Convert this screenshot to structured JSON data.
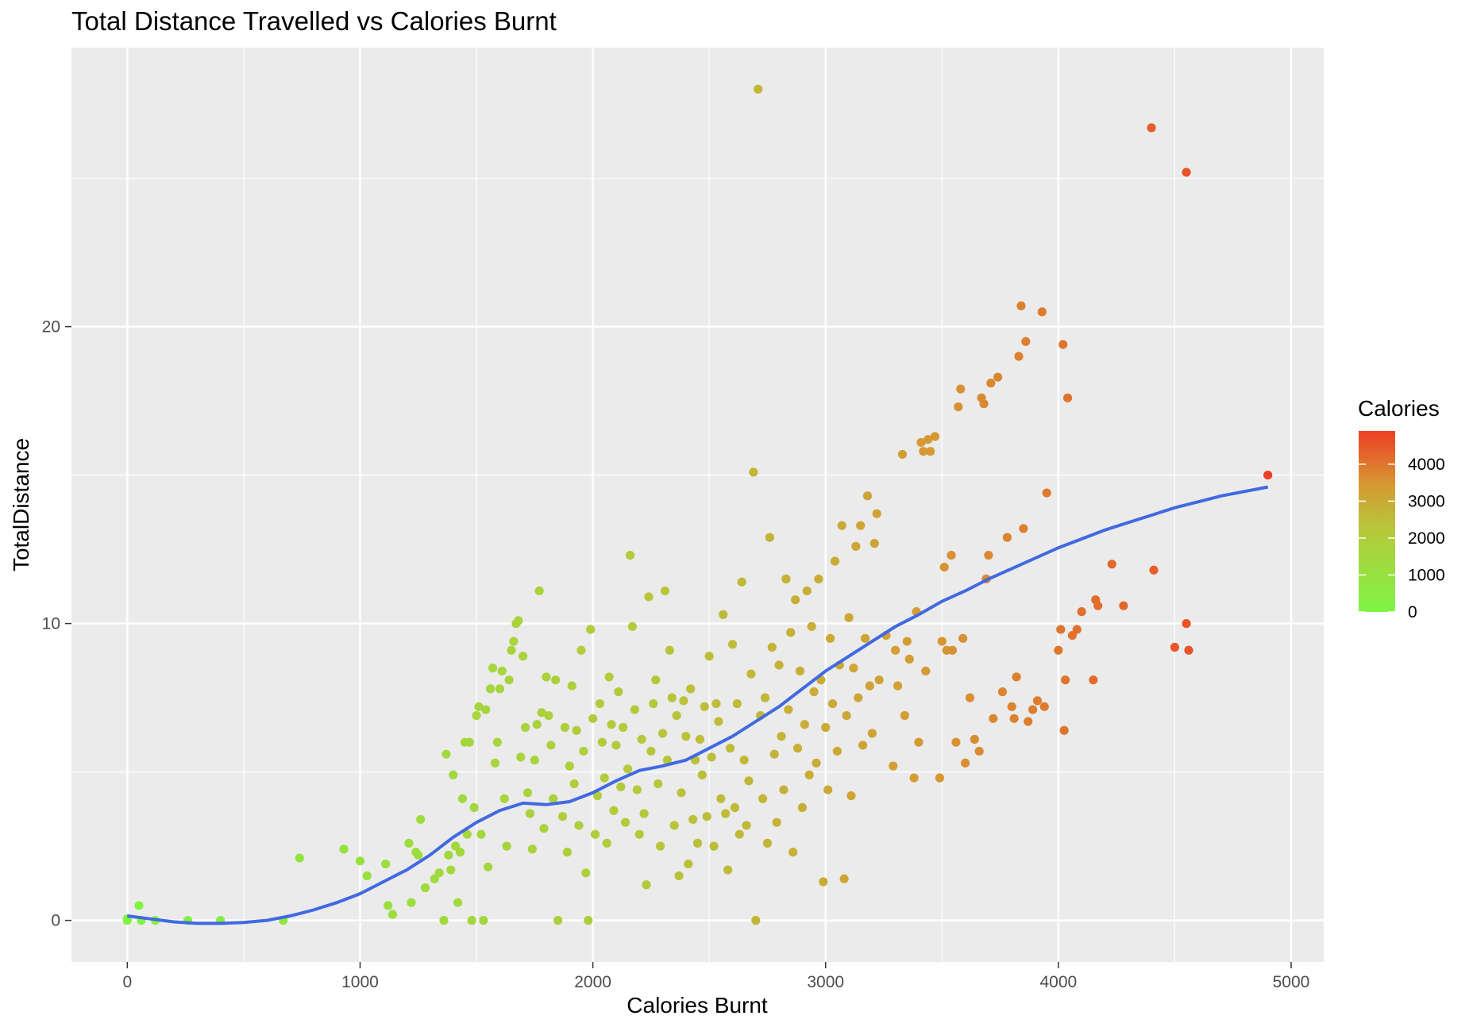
{
  "chart_data": {
    "type": "scatter",
    "title": "Total Distance Travelled vs Calories Burnt",
    "xlabel": "Calories Burnt",
    "ylabel": "TotalDistance",
    "xlim": [
      -240,
      5140
    ],
    "ylim": [
      -1.4,
      29.4
    ],
    "x_ticks": [
      0,
      1000,
      2000,
      3000,
      4000,
      5000
    ],
    "x_tick_labels": [
      "0",
      "1000",
      "2000",
      "3000",
      "4000",
      "5000"
    ],
    "y_ticks": [
      0,
      10,
      20
    ],
    "y_tick_labels": [
      "0",
      "10",
      "20"
    ],
    "grid": true,
    "legend": {
      "title": "Calories",
      "position": "right",
      "ticks": [
        0,
        1000,
        2000,
        3000,
        4000
      ],
      "tick_labels": [
        "0",
        "1000",
        "2000",
        "3000",
        "4000"
      ],
      "range": [
        0,
        4900
      ],
      "color_low": "#7FF543",
      "color_high": "#EE3E25"
    },
    "colors": {
      "panel_background": "#EBEBEB",
      "grid": "#FFFFFF",
      "smooth_line": "#4169E1"
    },
    "points": [
      [
        0,
        0
      ],
      [
        0,
        0.05
      ],
      [
        50,
        0.5
      ],
      [
        60,
        0
      ],
      [
        120,
        0
      ],
      [
        260,
        0
      ],
      [
        400,
        0
      ],
      [
        670,
        0
      ],
      [
        740,
        2.1
      ],
      [
        930,
        2.4
      ],
      [
        1000,
        2
      ],
      [
        1030,
        1.5
      ],
      [
        1110,
        1.9
      ],
      [
        1120,
        0.5
      ],
      [
        1140,
        0.2
      ],
      [
        1210,
        2.6
      ],
      [
        1220,
        0.6
      ],
      [
        1240,
        2.3
      ],
      [
        1250,
        2.2
      ],
      [
        1260,
        3.4
      ],
      [
        1280,
        1.1
      ],
      [
        1320,
        1.4
      ],
      [
        1340,
        1.6
      ],
      [
        1360,
        0
      ],
      [
        1370,
        5.6
      ],
      [
        1380,
        2.2
      ],
      [
        1390,
        1.7
      ],
      [
        1400,
        4.9
      ],
      [
        1410,
        2.5
      ],
      [
        1420,
        0.6
      ],
      [
        1430,
        2.3
      ],
      [
        1440,
        4.1
      ],
      [
        1450,
        6
      ],
      [
        1460,
        2.9
      ],
      [
        1470,
        6
      ],
      [
        1480,
        0
      ],
      [
        1490,
        3.8
      ],
      [
        1500,
        6.9
      ],
      [
        1510,
        7.2
      ],
      [
        1520,
        2.9
      ],
      [
        1530,
        0
      ],
      [
        1540,
        7.1
      ],
      [
        1550,
        1.8
      ],
      [
        1560,
        7.8
      ],
      [
        1570,
        8.5
      ],
      [
        1580,
        5.3
      ],
      [
        1590,
        6
      ],
      [
        1600,
        7.8
      ],
      [
        1610,
        8.4
      ],
      [
        1620,
        4.1
      ],
      [
        1630,
        2.5
      ],
      [
        1640,
        8.1
      ],
      [
        1650,
        9.1
      ],
      [
        1660,
        9.4
      ],
      [
        1670,
        10
      ],
      [
        1680,
        10.1
      ],
      [
        1690,
        5.5
      ],
      [
        1700,
        8.9
      ],
      [
        1710,
        6.5
      ],
      [
        1720,
        4.3
      ],
      [
        1730,
        3.6
      ],
      [
        1740,
        2.4
      ],
      [
        1750,
        5.4
      ],
      [
        1760,
        6.6
      ],
      [
        1770,
        11.1
      ],
      [
        1780,
        7
      ],
      [
        1790,
        3.1
      ],
      [
        1800,
        8.2
      ],
      [
        1810,
        6.9
      ],
      [
        1820,
        5.9
      ],
      [
        1830,
        4.1
      ],
      [
        1840,
        8.1
      ],
      [
        1850,
        0
      ],
      [
        1870,
        3.5
      ],
      [
        1880,
        6.5
      ],
      [
        1890,
        2.3
      ],
      [
        1900,
        5.2
      ],
      [
        1910,
        7.9
      ],
      [
        1920,
        4.6
      ],
      [
        1930,
        6.4
      ],
      [
        1940,
        3.2
      ],
      [
        1950,
        9.1
      ],
      [
        1960,
        5.7
      ],
      [
        1970,
        1.6
      ],
      [
        1980,
        0
      ],
      [
        1990,
        9.8
      ],
      [
        2000,
        6.8
      ],
      [
        2010,
        2.9
      ],
      [
        2020,
        4.2
      ],
      [
        2030,
        7.3
      ],
      [
        2040,
        6
      ],
      [
        2050,
        4.8
      ],
      [
        2060,
        2.6
      ],
      [
        2070,
        8.2
      ],
      [
        2080,
        6.6
      ],
      [
        2090,
        3.7
      ],
      [
        2100,
        5.9
      ],
      [
        2110,
        7.7
      ],
      [
        2120,
        4.5
      ],
      [
        2130,
        6.5
      ],
      [
        2140,
        3.3
      ],
      [
        2150,
        5.1
      ],
      [
        2160,
        12.3
      ],
      [
        2170,
        9.9
      ],
      [
        2180,
        7.1
      ],
      [
        2190,
        4.4
      ],
      [
        2200,
        2.9
      ],
      [
        2210,
        6.1
      ],
      [
        2220,
        3.6
      ],
      [
        2230,
        1.2
      ],
      [
        2240,
        10.9
      ],
      [
        2250,
        5.7
      ],
      [
        2260,
        7.3
      ],
      [
        2270,
        8.1
      ],
      [
        2280,
        4.6
      ],
      [
        2290,
        2.5
      ],
      [
        2300,
        6.3
      ],
      [
        2310,
        11.1
      ],
      [
        2320,
        5.4
      ],
      [
        2330,
        9.1
      ],
      [
        2340,
        7.5
      ],
      [
        2350,
        3.2
      ],
      [
        2360,
        6.9
      ],
      [
        2370,
        1.5
      ],
      [
        2380,
        4.3
      ],
      [
        2390,
        7.4
      ],
      [
        2400,
        6.2
      ],
      [
        2410,
        1.9
      ],
      [
        2420,
        7.8
      ],
      [
        2430,
        3.4
      ],
      [
        2440,
        5.4
      ],
      [
        2450,
        2.6
      ],
      [
        2460,
        6.1
      ],
      [
        2470,
        4.9
      ],
      [
        2480,
        7.2
      ],
      [
        2490,
        3.5
      ],
      [
        2500,
        8.9
      ],
      [
        2510,
        5.5
      ],
      [
        2520,
        2.5
      ],
      [
        2530,
        7.3
      ],
      [
        2540,
        6.7
      ],
      [
        2550,
        4.1
      ],
      [
        2560,
        10.3
      ],
      [
        2570,
        3.6
      ],
      [
        2580,
        1.7
      ],
      [
        2590,
        5.8
      ],
      [
        2600,
        9.3
      ],
      [
        2610,
        3.8
      ],
      [
        2620,
        7.3
      ],
      [
        2630,
        2.9
      ],
      [
        2640,
        11.4
      ],
      [
        2650,
        5.4
      ],
      [
        2660,
        3.2
      ],
      [
        2670,
        4.7
      ],
      [
        2680,
        8.3
      ],
      [
        2690,
        15.1
      ],
      [
        2700,
        0
      ],
      [
        2710,
        28
      ],
      [
        2720,
        6.9
      ],
      [
        2730,
        4.1
      ],
      [
        2740,
        7.5
      ],
      [
        2750,
        2.6
      ],
      [
        2760,
        12.9
      ],
      [
        2770,
        9.2
      ],
      [
        2780,
        5.6
      ],
      [
        2790,
        3.3
      ],
      [
        2800,
        8.6
      ],
      [
        2810,
        6.2
      ],
      [
        2820,
        4.4
      ],
      [
        2830,
        11.5
      ],
      [
        2840,
        7.1
      ],
      [
        2850,
        9.7
      ],
      [
        2860,
        2.3
      ],
      [
        2870,
        10.8
      ],
      [
        2880,
        5.8
      ],
      [
        2890,
        8.4
      ],
      [
        2900,
        3.8
      ],
      [
        2910,
        6.6
      ],
      [
        2920,
        11.1
      ],
      [
        2930,
        4.9
      ],
      [
        2940,
        9.9
      ],
      [
        2950,
        7.7
      ],
      [
        2960,
        5.3
      ],
      [
        2970,
        11.5
      ],
      [
        2980,
        8.1
      ],
      [
        2990,
        1.3
      ],
      [
        3000,
        6.5
      ],
      [
        3010,
        4.4
      ],
      [
        3020,
        9.5
      ],
      [
        3030,
        7.3
      ],
      [
        3040,
        12.1
      ],
      [
        3050,
        5.7
      ],
      [
        3060,
        8.6
      ],
      [
        3070,
        13.3
      ],
      [
        3080,
        1.4
      ],
      [
        3090,
        6.9
      ],
      [
        3100,
        10.2
      ],
      [
        3110,
        4.2
      ],
      [
        3120,
        8.5
      ],
      [
        3130,
        12.6
      ],
      [
        3140,
        7.5
      ],
      [
        3150,
        13.3
      ],
      [
        3160,
        5.9
      ],
      [
        3170,
        9.5
      ],
      [
        3180,
        14.3
      ],
      [
        3190,
        7.9
      ],
      [
        3200,
        6.3
      ],
      [
        3210,
        12.7
      ],
      [
        3220,
        13.7
      ],
      [
        3230,
        8.1
      ],
      [
        3260,
        9.6
      ],
      [
        3290,
        5.2
      ],
      [
        3300,
        9.1
      ],
      [
        3310,
        7.9
      ],
      [
        3330,
        15.7
      ],
      [
        3340,
        6.9
      ],
      [
        3350,
        9.4
      ],
      [
        3360,
        8.8
      ],
      [
        3380,
        4.8
      ],
      [
        3390,
        10.4
      ],
      [
        3400,
        6
      ],
      [
        3410,
        16.1
      ],
      [
        3420,
        15.8
      ],
      [
        3430,
        8.4
      ],
      [
        3440,
        16.2
      ],
      [
        3450,
        15.8
      ],
      [
        3470,
        16.3
      ],
      [
        3490,
        4.8
      ],
      [
        3500,
        9.4
      ],
      [
        3510,
        11.9
      ],
      [
        3520,
        9.1
      ],
      [
        3540,
        12.3
      ],
      [
        3545,
        9.1
      ],
      [
        3560,
        6
      ],
      [
        3570,
        17.3
      ],
      [
        3580,
        17.9
      ],
      [
        3590,
        9.5
      ],
      [
        3600,
        5.3
      ],
      [
        3620,
        7.5
      ],
      [
        3640,
        6.1
      ],
      [
        3660,
        5.7
      ],
      [
        3670,
        17.6
      ],
      [
        3680,
        17.4
      ],
      [
        3690,
        11.5
      ],
      [
        3700,
        12.3
      ],
      [
        3710,
        18.1
      ],
      [
        3720,
        6.8
      ],
      [
        3740,
        18.3
      ],
      [
        3760,
        7.7
      ],
      [
        3780,
        12.9
      ],
      [
        3800,
        7.2
      ],
      [
        3810,
        6.8
      ],
      [
        3820,
        8.2
      ],
      [
        3830,
        19
      ],
      [
        3840,
        20.7
      ],
      [
        3850,
        13.2
      ],
      [
        3860,
        19.5
      ],
      [
        3870,
        6.7
      ],
      [
        3890,
        7.1
      ],
      [
        3910,
        7.4
      ],
      [
        3930,
        20.5
      ],
      [
        3940,
        7.2
      ],
      [
        3950,
        14.4
      ],
      [
        4000,
        9.1
      ],
      [
        4010,
        9.8
      ],
      [
        4020,
        19.4
      ],
      [
        4025,
        6.4
      ],
      [
        4030,
        8.1
      ],
      [
        4040,
        17.6
      ],
      [
        4060,
        9.6
      ],
      [
        4080,
        9.8
      ],
      [
        4100,
        10.4
      ],
      [
        4150,
        8.1
      ],
      [
        4160,
        10.8
      ],
      [
        4170,
        10.6
      ],
      [
        4230,
        12
      ],
      [
        4280,
        10.6
      ],
      [
        4400,
        26.7
      ],
      [
        4410,
        11.8
      ],
      [
        4500,
        9.2
      ],
      [
        4550,
        25.2
      ],
      [
        4550,
        10
      ],
      [
        4560,
        9.1
      ],
      [
        4900,
        15
      ]
    ],
    "smooth_line": [
      [
        0,
        0.15
      ],
      [
        100,
        0.05
      ],
      [
        200,
        -0.05
      ],
      [
        300,
        -0.1
      ],
      [
        400,
        -0.1
      ],
      [
        500,
        -0.07
      ],
      [
        600,
        0
      ],
      [
        700,
        0.15
      ],
      [
        800,
        0.35
      ],
      [
        900,
        0.6
      ],
      [
        1000,
        0.9
      ],
      [
        1100,
        1.3
      ],
      [
        1200,
        1.7
      ],
      [
        1300,
        2.2
      ],
      [
        1400,
        2.8
      ],
      [
        1500,
        3.3
      ],
      [
        1600,
        3.7
      ],
      [
        1700,
        3.95
      ],
      [
        1800,
        3.9
      ],
      [
        1900,
        4
      ],
      [
        2000,
        4.3
      ],
      [
        2100,
        4.7
      ],
      [
        2200,
        5.05
      ],
      [
        2300,
        5.2
      ],
      [
        2400,
        5.4
      ],
      [
        2500,
        5.8
      ],
      [
        2600,
        6.2
      ],
      [
        2700,
        6.7
      ],
      [
        2800,
        7.2
      ],
      [
        2900,
        7.8
      ],
      [
        3000,
        8.4
      ],
      [
        3100,
        8.9
      ],
      [
        3200,
        9.4
      ],
      [
        3300,
        9.9
      ],
      [
        3400,
        10.3
      ],
      [
        3500,
        10.75
      ],
      [
        3600,
        11.1
      ],
      [
        3700,
        11.5
      ],
      [
        3800,
        11.85
      ],
      [
        3900,
        12.2
      ],
      [
        4000,
        12.55
      ],
      [
        4100,
        12.85
      ],
      [
        4200,
        13.15
      ],
      [
        4300,
        13.4
      ],
      [
        4400,
        13.65
      ],
      [
        4500,
        13.9
      ],
      [
        4600,
        14.1
      ],
      [
        4700,
        14.3
      ],
      [
        4800,
        14.45
      ],
      [
        4900,
        14.6
      ]
    ]
  }
}
